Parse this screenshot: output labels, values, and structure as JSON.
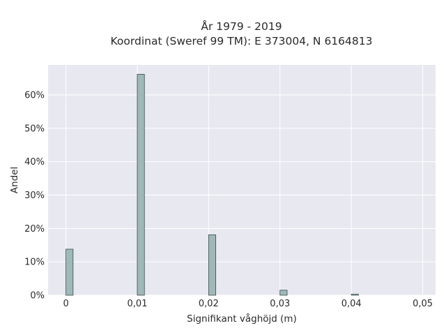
{
  "chart_data": {
    "type": "bar",
    "title_lines": [
      "År 1979 - 2019",
      "Koordinat (Sweref 99 TM): E 373004, N 6164813"
    ],
    "xlabel": "Signifikant våghöjd (m)",
    "ylabel": "Andel",
    "x_ticks": [
      0,
      0.01,
      0.02,
      0.03,
      0.04,
      0.05
    ],
    "x_tick_labels": [
      "0",
      "0,01",
      "0,02",
      "0,03",
      "0,04",
      "0,05"
    ],
    "y_ticks": [
      0,
      10,
      20,
      30,
      40,
      50,
      60
    ],
    "y_tick_labels": [
      "0%",
      "10%",
      "20%",
      "30%",
      "40%",
      "50%",
      "60%"
    ],
    "xlim": [
      -0.0025,
      0.0518
    ],
    "ylim": [
      0,
      69
    ],
    "bar_width": 0.001,
    "x": [
      0,
      0.01,
      0.02,
      0.03,
      0.04
    ],
    "values": [
      13.8,
      66.2,
      18.1,
      1.5,
      0.3
    ],
    "grid": true,
    "colors": {
      "plot_bg": "#e8e8f0",
      "grid": "#ffffff",
      "bar_fill": "#9fb8b8",
      "bar_stroke": "#3a4a4a"
    }
  }
}
